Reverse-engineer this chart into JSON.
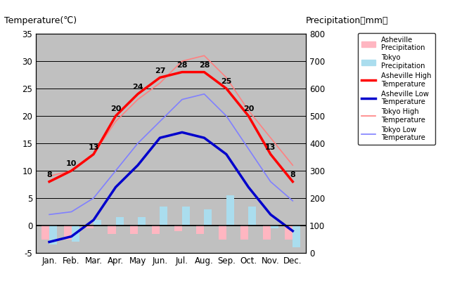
{
  "months": [
    "Jan.",
    "Feb.",
    "Mar.",
    "Apr.",
    "May",
    "Jun.",
    "Jul.",
    "Aug.",
    "Sep.",
    "Oct.",
    "Nov.",
    "Dec."
  ],
  "month_indices": [
    0,
    1,
    2,
    3,
    4,
    5,
    6,
    7,
    8,
    9,
    10,
    11
  ],
  "asheville_high": [
    8,
    10,
    13,
    20,
    24,
    27,
    28,
    28,
    25,
    20,
    13,
    8
  ],
  "asheville_low": [
    -3,
    -2,
    1,
    7,
    11,
    16,
    17,
    16,
    13,
    7,
    2,
    -1
  ],
  "tokyo_high": [
    9,
    10,
    13,
    19,
    23,
    26,
    30,
    31,
    27,
    21,
    16,
    11
  ],
  "tokyo_low": [
    2,
    2.5,
    5,
    10,
    15,
    19,
    23,
    24,
    20,
    14,
    8,
    4.5
  ],
  "asheville_precip_temp": [
    -2.5,
    -2.5,
    -0.5,
    -1.5,
    -1.5,
    -1.5,
    -1.0,
    -1.5,
    -2.5,
    -2.5,
    -2.5,
    -2.5
  ],
  "tokyo_precip_temp": [
    -3.5,
    -3.0,
    1.0,
    1.5,
    1.5,
    3.5,
    3.5,
    3.0,
    5.5,
    3.5,
    -0.5,
    -4.0
  ],
  "temp_ylim": [
    -5,
    35
  ],
  "temp_yticks": [
    -5,
    0,
    5,
    10,
    15,
    20,
    25,
    30,
    35
  ],
  "precip_ylim": [
    0,
    800
  ],
  "precip_yticks": [
    0,
    100,
    200,
    300,
    400,
    500,
    600,
    700,
    800
  ],
  "bg_color": "#c0c0c0",
  "asheville_high_color": "#ff0000",
  "asheville_low_color": "#0000cc",
  "tokyo_high_color": "#ff8080",
  "tokyo_low_color": "#8080ff",
  "asheville_precip_color": "#ffb6c1",
  "tokyo_precip_color": "#aaddee",
  "title_left": "Temperature(℃)",
  "title_right": "Precipitation（mm）"
}
